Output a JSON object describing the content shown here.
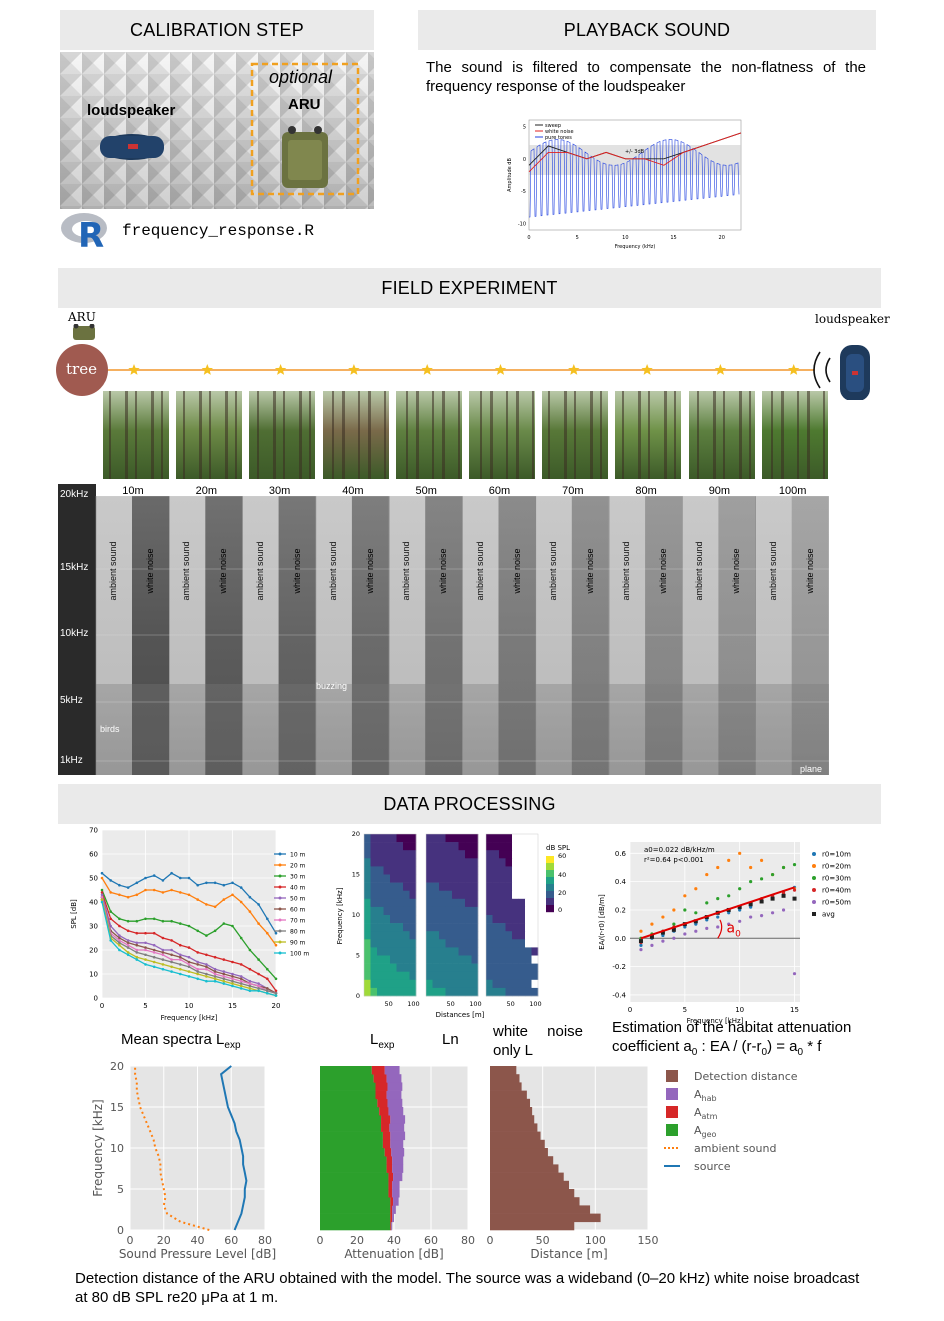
{
  "sections": {
    "calibration": "CALIBRATION STEP",
    "playback": "PLAYBACK SOUND",
    "field": "FIELD EXPERIMENT",
    "processing": "DATA PROCESSING"
  },
  "calibration": {
    "loudspeaker_label": "loudspeaker",
    "optional_label": "optional",
    "aru_label": "ARU",
    "r_logo": "R",
    "script_name": "frequency_response.R"
  },
  "playback": {
    "description": "The sound is filtered to compensate the non-flatness of the frequency response of the loudspeaker",
    "legend": [
      "sweep",
      "white noise",
      "pure tones"
    ],
    "annotation": "+/- 3dB",
    "xlabel": "Frequency (kHz)",
    "ylabel": "Amplitude dB",
    "xticks": [
      "0",
      "5",
      "10",
      "15",
      "20"
    ],
    "yticks": [
      "5",
      "0",
      "-5",
      "-10"
    ]
  },
  "field": {
    "aru_label": "ARU",
    "tree_label": "tree",
    "loudspeaker_label": "loudspeaker",
    "distances": [
      "10m",
      "20m",
      "30m",
      "40m",
      "50m",
      "60m",
      "70m",
      "80m",
      "90m",
      "100m"
    ],
    "freq_ticks": [
      "20kHz",
      "15kHz",
      "10kHz",
      "5kHz",
      "1kHz"
    ],
    "ambient_label": "ambient sound",
    "white_label": "white noise",
    "annotations": {
      "birds": "birds",
      "buzzing": "buzzing",
      "plane": "plane"
    }
  },
  "processing": {
    "caption_mean": "Mean spectra L",
    "caption_mean_sub": "exp",
    "caption_lexp": "L",
    "caption_lexp_sub": "exp",
    "caption_ln": "Ln",
    "caption_white": "white noise only L",
    "caption_estimation_1": "Estimation of the habitat attenuation",
    "caption_estimation_2": "coefficient a",
    "caption_estimation_sub": "0",
    "caption_estimation_3": " : EA / (r-r",
    "caption_estimation_sub2": "0",
    "caption_estimation_4": ") =  a",
    "caption_estimation_sub3": "0",
    "caption_estimation_5": " * f",
    "heatmap_colorbar_title": "dB SPL",
    "heatmap_xlabel": "Distances [m]",
    "heatmap_ylabel": "Frequency [kHz]",
    "final_caption": "Detection distance of the ARU obtained with the model. The source was a wideband (0–20 kHz) white noise broadcast at 80 dB SPL re20 μPa at 1 m."
  },
  "chart_data": [
    {
      "id": "playback-response",
      "type": "line",
      "x": [
        0,
        2,
        4,
        6,
        8,
        10,
        12,
        14,
        16,
        18,
        20,
        22
      ],
      "series": [
        {
          "name": "sweep",
          "values": [
            -1,
            2,
            1,
            0,
            1,
            0,
            0,
            0,
            1,
            2,
            3,
            4
          ]
        },
        {
          "name": "white noise",
          "values": [
            -2,
            1,
            1,
            0,
            1,
            0,
            0,
            -1,
            1,
            2,
            3,
            4
          ]
        },
        {
          "name": "pure tones",
          "values": [
            -8,
            -9,
            -9,
            -9,
            -9,
            -9,
            -8,
            -8,
            -8,
            -8,
            -8,
            -8
          ]
        }
      ],
      "xlabel": "Frequency (kHz)",
      "ylabel": "Amplitude dB",
      "xlim": [
        0,
        22
      ],
      "ylim": [
        -11,
        6
      ]
    },
    {
      "id": "mean-spectra",
      "type": "line",
      "x": [
        0,
        1,
        2,
        3,
        4,
        5,
        6,
        7,
        8,
        9,
        10,
        11,
        12,
        13,
        14,
        15,
        16,
        17,
        18,
        19,
        20
      ],
      "series": [
        {
          "name": "10 m",
          "values": [
            52,
            49,
            47,
            46,
            48,
            50,
            51,
            49,
            52,
            50,
            50,
            47,
            48,
            48,
            47,
            48,
            46,
            42,
            39,
            33,
            27
          ]
        },
        {
          "name": "20 m",
          "values": [
            50,
            44,
            43,
            42,
            43,
            45,
            45,
            44,
            45,
            44,
            43,
            41,
            39,
            38,
            41,
            43,
            40,
            36,
            31,
            27,
            22
          ]
        },
        {
          "name": "30 m",
          "values": [
            45,
            36,
            33,
            32,
            32,
            33,
            33,
            32,
            32,
            31,
            30,
            28,
            26,
            28,
            31,
            30,
            25,
            20,
            16,
            12,
            8
          ]
        },
        {
          "name": "40 m",
          "values": [
            44,
            33,
            30,
            28,
            27,
            27,
            27,
            25,
            24,
            22,
            21,
            19,
            18,
            17,
            16,
            15,
            14,
            12,
            10,
            8,
            3
          ]
        },
        {
          "name": "50 m",
          "values": [
            43,
            30,
            26,
            24,
            23,
            23,
            22,
            20,
            20,
            18,
            17,
            15,
            14,
            12,
            11,
            10,
            9,
            7,
            6,
            4,
            2
          ]
        },
        {
          "name": "60 m",
          "values": [
            42,
            28,
            25,
            23,
            22,
            21,
            20,
            19,
            18,
            17,
            15,
            14,
            13,
            11,
            10,
            9,
            8,
            6,
            5,
            4,
            2
          ]
        },
        {
          "name": "70 m",
          "values": [
            42,
            27,
            24,
            22,
            20,
            20,
            19,
            18,
            16,
            16,
            14,
            12,
            12,
            10,
            9,
            8,
            7,
            6,
            5,
            3,
            2
          ]
        },
        {
          "name": "80 m",
          "values": [
            41,
            26,
            23,
            21,
            19,
            18,
            17,
            16,
            15,
            14,
            13,
            11,
            10,
            9,
            8,
            7,
            6,
            5,
            4,
            3,
            2
          ]
        },
        {
          "name": "90 m",
          "values": [
            41,
            25,
            22,
            19,
            17,
            16,
            15,
            14,
            13,
            12,
            11,
            10,
            9,
            8,
            7,
            6,
            5,
            4,
            3,
            2,
            1
          ]
        },
        {
          "name": "100 m",
          "values": [
            40,
            24,
            20,
            18,
            16,
            14,
            13,
            12,
            11,
            10,
            9,
            8,
            7,
            7,
            6,
            5,
            4,
            3,
            3,
            2,
            1
          ]
        }
      ],
      "xlabel": "Frequency [kHz]",
      "ylabel": "SPL [dB]",
      "xlim": [
        0,
        20
      ],
      "ylim": [
        0,
        70
      ],
      "xticks": [
        0,
        5,
        10,
        15,
        20
      ],
      "yticks": [
        0,
        10,
        20,
        30,
        40,
        50,
        60,
        70
      ],
      "grid": true,
      "legend": "right"
    },
    {
      "id": "attenuation-scatter",
      "type": "scatter",
      "annotation_1": "a0=0.022 dB/kHz/m",
      "annotation_2": "r²=0.64  p<0.001",
      "fit_label": "a",
      "fit_label_sub": "0",
      "xlabel": "Frequency [kHz]",
      "ylabel": "EA/(r-r0) [dB/m]",
      "xlim": [
        0,
        15.5
      ],
      "ylim": [
        -0.45,
        0.68
      ],
      "xticks": [
        0,
        5,
        10,
        15
      ],
      "yticks": [
        -0.4,
        -0.2,
        0,
        0.2,
        0.4,
        0.6
      ],
      "fit": {
        "x": [
          1,
          15
        ],
        "y": [
          0.0,
          0.36
        ]
      },
      "series": [
        {
          "name": "r0=10m",
          "x": [
            1,
            2,
            3,
            4,
            5,
            6,
            7,
            8,
            9,
            10,
            11,
            12,
            13,
            14,
            15
          ],
          "y": [
            -0.05,
            0.0,
            0.02,
            0.05,
            0.08,
            0.1,
            0.13,
            0.15,
            0.18,
            0.2,
            0.22,
            0.26,
            0.3,
            0.33,
            0.36
          ]
        },
        {
          "name": "r0=20m",
          "x": [
            1,
            2,
            3,
            4,
            5,
            6,
            7,
            8,
            9,
            10,
            11,
            12,
            13,
            14,
            15
          ],
          "y": [
            0.05,
            0.1,
            0.15,
            0.2,
            0.3,
            0.35,
            0.45,
            0.5,
            0.55,
            0.6,
            0.5,
            0.55,
            0.45,
            0.5,
            0.35
          ]
        },
        {
          "name": "r0=30m",
          "x": [
            1,
            2,
            3,
            4,
            5,
            6,
            7,
            8,
            9,
            10,
            11,
            12,
            13,
            14,
            15
          ],
          "y": [
            0.0,
            0.03,
            0.05,
            0.1,
            0.2,
            0.18,
            0.25,
            0.28,
            0.3,
            0.35,
            0.4,
            0.42,
            0.45,
            0.5,
            0.52
          ]
        },
        {
          "name": "r0=40m",
          "x": [
            1,
            2,
            3,
            4,
            5,
            6,
            7,
            8,
            9,
            10,
            11,
            12,
            13,
            14,
            15
          ],
          "y": [
            -0.03,
            0.02,
            0.05,
            0.08,
            0.1,
            0.12,
            0.15,
            0.18,
            0.2,
            0.22,
            0.25,
            0.28,
            0.3,
            0.32,
            0.34
          ]
        },
        {
          "name": "r0=50m",
          "x": [
            1,
            2,
            3,
            4,
            5,
            6,
            7,
            8,
            9,
            10,
            11,
            12,
            13,
            14,
            15
          ],
          "y": [
            -0.08,
            -0.05,
            -0.02,
            0.0,
            0.03,
            0.05,
            0.07,
            0.08,
            0.1,
            0.12,
            0.15,
            0.16,
            0.18,
            0.2,
            -0.25
          ]
        },
        {
          "name": "avg",
          "x": [
            1,
            2,
            3,
            4,
            5,
            6,
            7,
            8,
            9,
            10,
            11,
            12,
            13,
            14,
            15
          ],
          "y": [
            -0.02,
            0.01,
            0.04,
            0.06,
            0.1,
            0.12,
            0.15,
            0.18,
            0.2,
            0.22,
            0.24,
            0.26,
            0.28,
            0.3,
            0.28
          ]
        }
      ],
      "grid": true,
      "legend": "right"
    },
    {
      "id": "ambient-source",
      "type": "line",
      "xlabel": "Sound Pressure Level [dB]",
      "ylabel": "Frequency [kHz]",
      "xlim": [
        0,
        80
      ],
      "ylim": [
        0,
        20
      ],
      "xticks": [
        0,
        20,
        40,
        60,
        80
      ],
      "yticks": [
        0,
        5,
        10,
        15,
        20
      ],
      "series": [
        {
          "name": "ambient sound",
          "x": [
            47,
            30,
            22,
            20,
            21,
            20,
            19,
            18,
            18,
            17,
            15,
            14,
            12,
            10,
            8,
            6,
            5,
            4,
            4,
            3,
            3
          ],
          "y": [
            0,
            1,
            2,
            3,
            4,
            5,
            6,
            7,
            8,
            9,
            10,
            11,
            12,
            13,
            14,
            15,
            16,
            17,
            18,
            19,
            20
          ]
        },
        {
          "name": "source",
          "x": [
            62,
            64,
            66,
            67,
            68,
            68,
            69,
            68,
            67,
            67,
            66,
            65,
            63,
            62,
            60,
            58,
            57,
            56,
            55,
            54,
            60
          ],
          "y": [
            0,
            1,
            2,
            3,
            4,
            5,
            6,
            7,
            8,
            9,
            10,
            11,
            12,
            13,
            14,
            15,
            16,
            17,
            18,
            19,
            20
          ]
        }
      ],
      "grid": true
    },
    {
      "id": "attenuation-stacked",
      "type": "bar",
      "orientation": "horizontal",
      "xlabel": "Attenuation [dB]",
      "xlim": [
        0,
        80
      ],
      "xticks": [
        0,
        20,
        40,
        60,
        80
      ],
      "ylim": [
        0,
        20
      ],
      "freq": [
        0.5,
        1.5,
        2.5,
        3.5,
        4.5,
        5.5,
        6.5,
        7.5,
        8.5,
        9.5,
        10.5,
        11.5,
        12.5,
        13.5,
        14.5,
        15.5,
        16.5,
        17.5,
        18.5,
        19.5
      ],
      "series": [
        {
          "name": "A_geo",
          "values": [
            38,
            38,
            38,
            38,
            37,
            37,
            37,
            36,
            36,
            35,
            34,
            34,
            33,
            33,
            32,
            31,
            30,
            30,
            29,
            28
          ]
        },
        {
          "name": "A_atm",
          "values": [
            0.5,
            1,
            1,
            1.5,
            2,
            2,
            2.5,
            3,
            3,
            3.5,
            4,
            4,
            4.5,
            5,
            5,
            5.5,
            6,
            6.5,
            7,
            7
          ]
        },
        {
          "name": "A_hab",
          "values": [
            0.5,
            1,
            2,
            3,
            4,
            4,
            5,
            6,
            6,
            7,
            7,
            8,
            8,
            8,
            8,
            8,
            8,
            8,
            8,
            8
          ]
        }
      ],
      "grid": true
    },
    {
      "id": "detection-distance",
      "type": "bar",
      "orientation": "horizontal",
      "xlabel": "Distance [m]",
      "xlim": [
        0,
        150
      ],
      "xticks": [
        0,
        50,
        100,
        150
      ],
      "ylim": [
        0,
        20
      ],
      "freq": [
        0.5,
        1.5,
        2.5,
        3.5,
        4.5,
        5.5,
        6.5,
        7.5,
        8.5,
        9.5,
        10.5,
        11.5,
        12.5,
        13.5,
        14.5,
        15.5,
        16.5,
        17.5,
        18.5,
        19.5
      ],
      "series": [
        {
          "name": "Detection distance",
          "values": [
            80,
            105,
            95,
            85,
            80,
            75,
            70,
            65,
            60,
            55,
            52,
            48,
            45,
            42,
            40,
            38,
            35,
            30,
            28,
            25
          ]
        }
      ],
      "grid": true
    }
  ],
  "final_legend": [
    {
      "name": "Detection distance",
      "sub": ""
    },
    {
      "name": "A",
      "sub": "hab"
    },
    {
      "name": "A",
      "sub": "atm"
    },
    {
      "name": "A",
      "sub": "geo"
    },
    {
      "name": "ambient sound",
      "sub": ""
    },
    {
      "name": "source",
      "sub": ""
    }
  ],
  "colors": {
    "band": "#eaeaea",
    "orange_box": "#f0a020",
    "distance_line": "#f5b060",
    "star": "#f5c020",
    "tree": "#a05a50",
    "detection": "#8c564b",
    "hab": "#9467bd",
    "atm": "#d62728",
    "geo": "#2ca02c",
    "ambient": "#ff7f0e",
    "source": "#1f77b4"
  }
}
